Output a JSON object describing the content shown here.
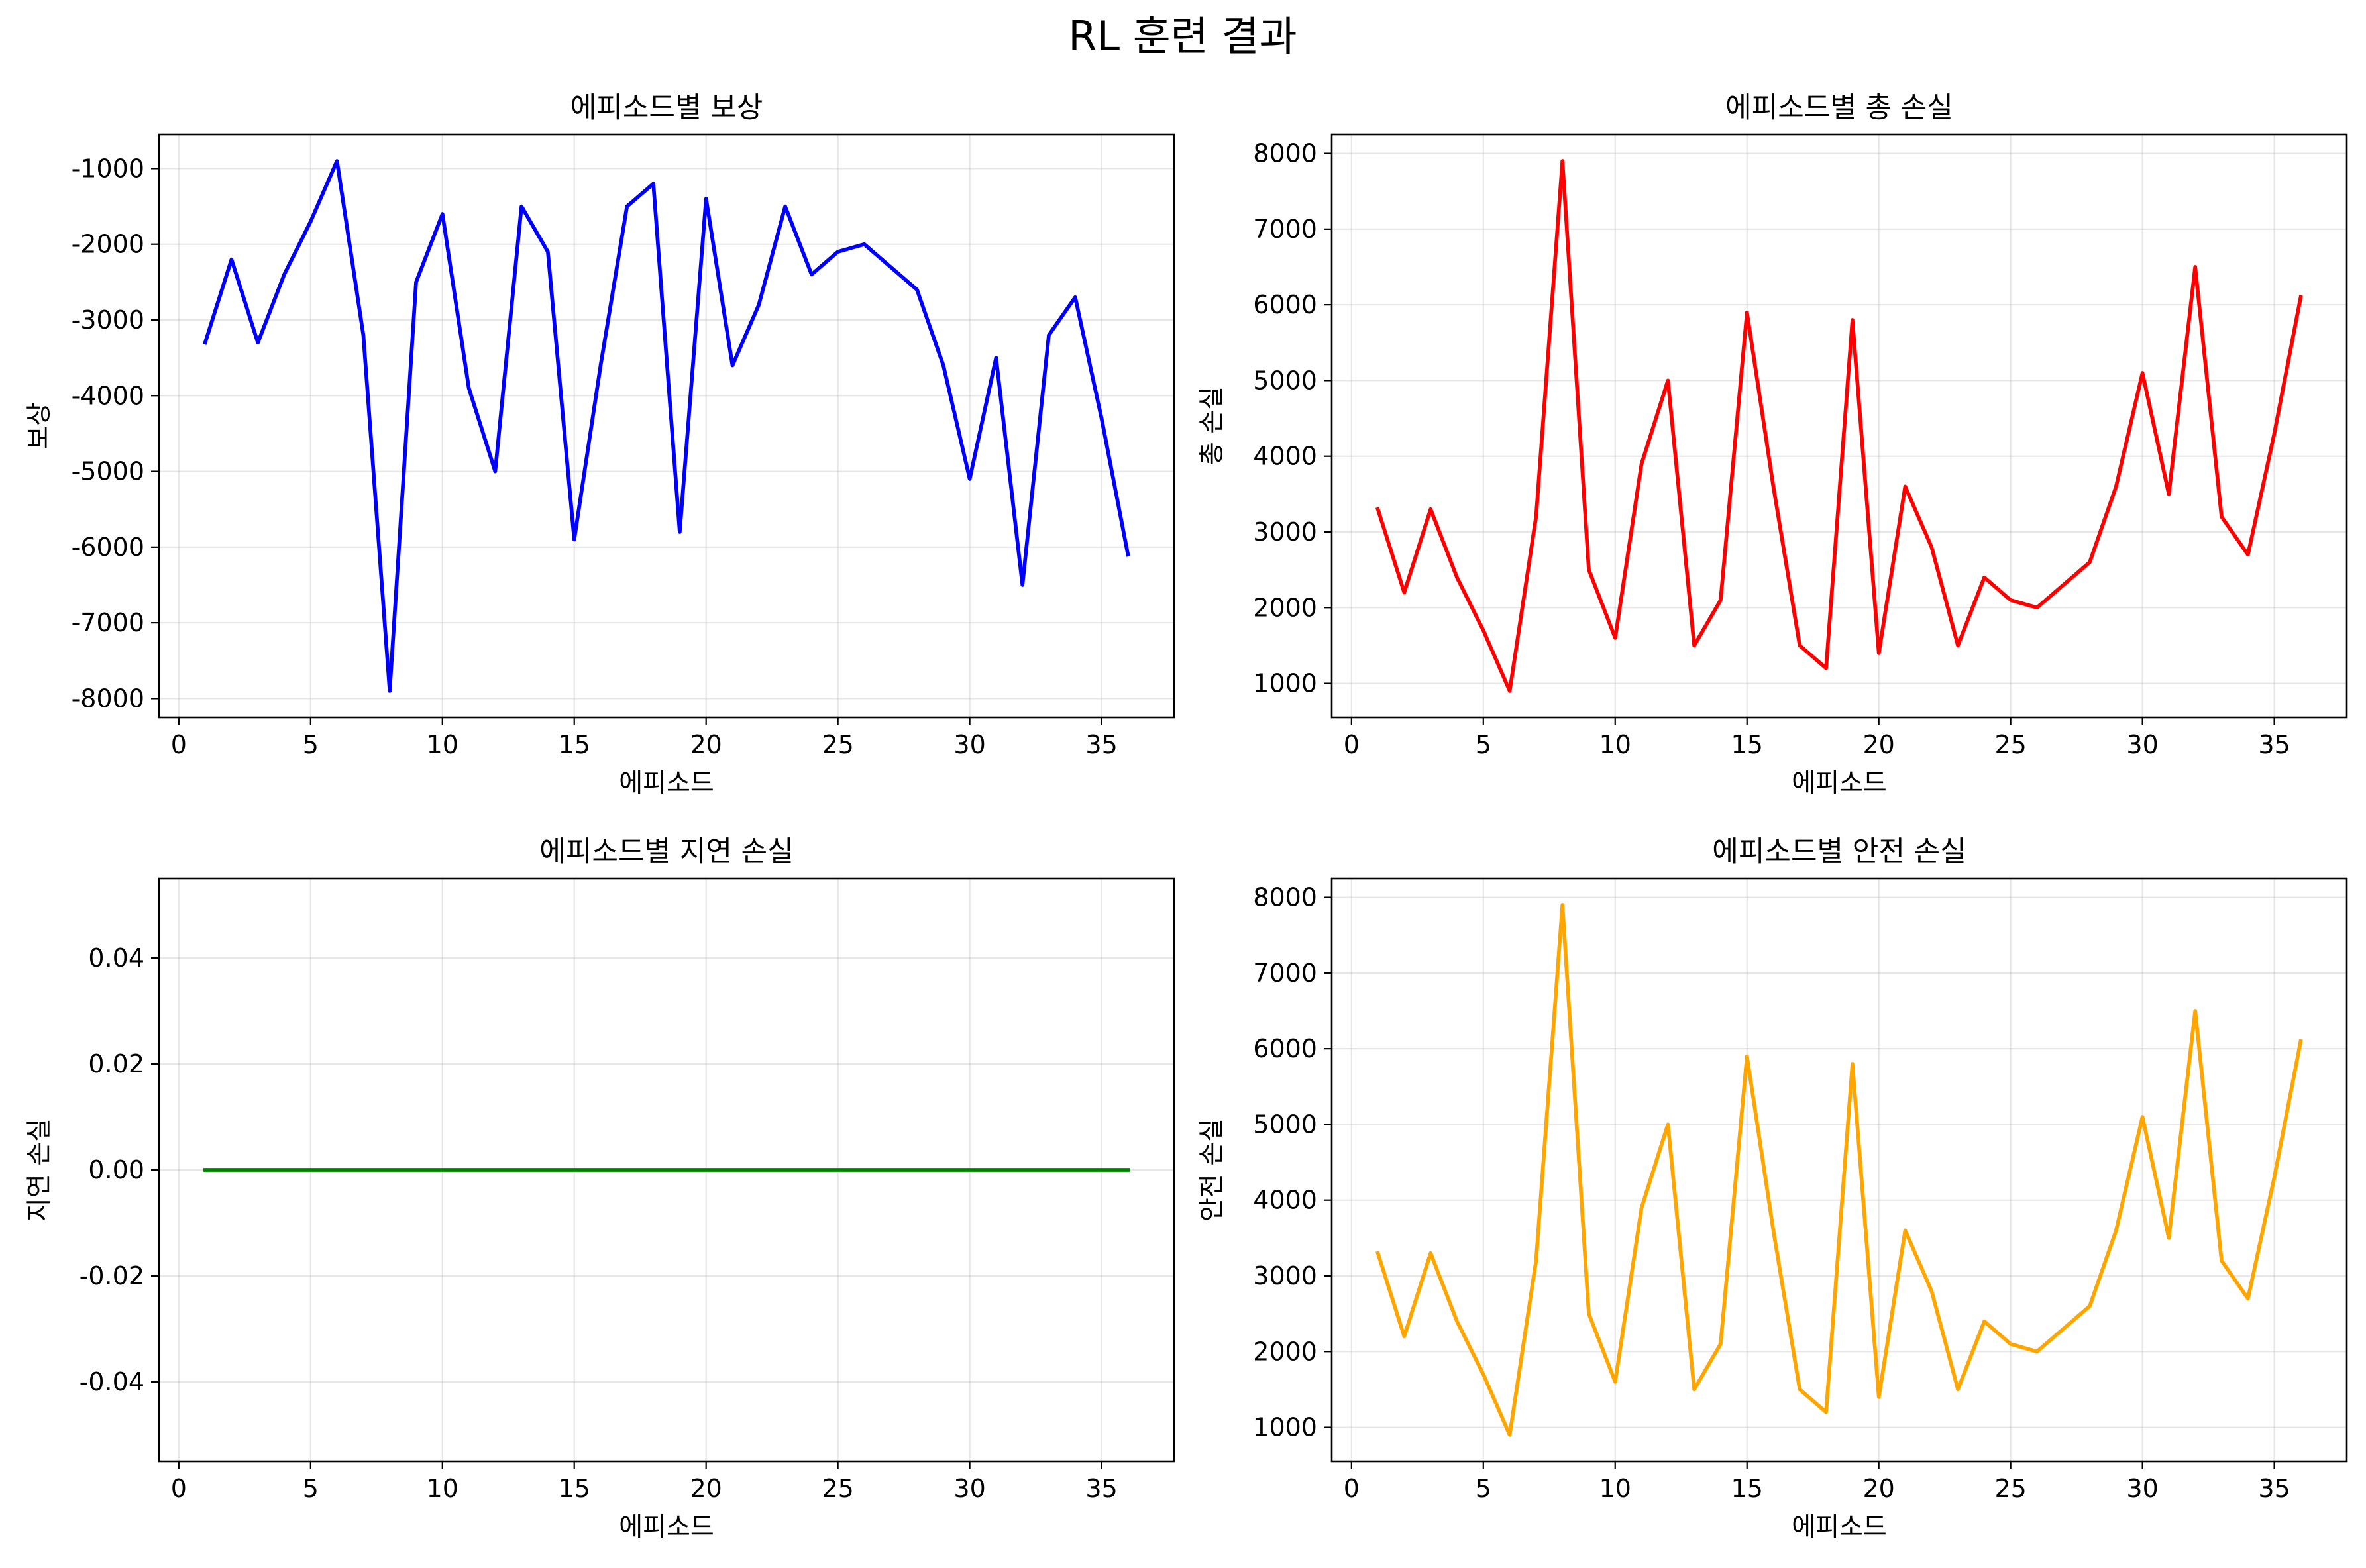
{
  "figure": {
    "suptitle": "RL 훈련 결과"
  },
  "chart_data": [
    {
      "type": "line",
      "title": "에피소드별 보상",
      "xlabel": "에피소드",
      "ylabel": "보상",
      "color": "#0000ff",
      "xlim": [
        -0.75,
        37.75
      ],
      "ylim": [
        -8250,
        -550
      ],
      "xticks": [
        0,
        5,
        10,
        15,
        20,
        25,
        30,
        35
      ],
      "xtick_labels": [
        "0",
        "5",
        "10",
        "15",
        "20",
        "25",
        "30",
        "35"
      ],
      "yticks": [
        -8000,
        -7000,
        -6000,
        -5000,
        -4000,
        -3000,
        -2000,
        -1000
      ],
      "ytick_labels": [
        "-8000",
        "-7000",
        "-6000",
        "-5000",
        "-4000",
        "-3000",
        "-2000",
        "-1000"
      ],
      "grid": true,
      "x": [
        1,
        2,
        3,
        4,
        5,
        6,
        7,
        8,
        9,
        10,
        11,
        12,
        13,
        14,
        15,
        16,
        17,
        18,
        19,
        20,
        21,
        22,
        23,
        24,
        25,
        26,
        27,
        28,
        29,
        30,
        31,
        32,
        33,
        34,
        35,
        36
      ],
      "values": [
        -3300,
        -2200,
        -3300,
        -2400,
        -1700,
        -900,
        -3200,
        -7900,
        -2500,
        -1600,
        -3900,
        -5000,
        -1500,
        -2100,
        -5900,
        -3600,
        -1500,
        -1200,
        -5800,
        -1400,
        -3600,
        -2800,
        -1500,
        -2400,
        -2100,
        -2000,
        -2300,
        -2600,
        -3600,
        -5100,
        -3500,
        -6500,
        -3200,
        -2700,
        -4300,
        -6100
      ]
    },
    {
      "type": "line",
      "title": "에피소드별 총 손실",
      "xlabel": "에피소드",
      "ylabel": "총 손실",
      "color": "#ff0000",
      "xlim": [
        -0.75,
        37.75
      ],
      "ylim": [
        550,
        8250
      ],
      "xticks": [
        0,
        5,
        10,
        15,
        20,
        25,
        30,
        35
      ],
      "xtick_labels": [
        "0",
        "5",
        "10",
        "15",
        "20",
        "25",
        "30",
        "35"
      ],
      "yticks": [
        1000,
        2000,
        3000,
        4000,
        5000,
        6000,
        7000,
        8000
      ],
      "ytick_labels": [
        "1000",
        "2000",
        "3000",
        "4000",
        "5000",
        "6000",
        "7000",
        "8000"
      ],
      "grid": true,
      "x": [
        1,
        2,
        3,
        4,
        5,
        6,
        7,
        8,
        9,
        10,
        11,
        12,
        13,
        14,
        15,
        16,
        17,
        18,
        19,
        20,
        21,
        22,
        23,
        24,
        25,
        26,
        27,
        28,
        29,
        30,
        31,
        32,
        33,
        34,
        35,
        36
      ],
      "values": [
        3300,
        2200,
        3300,
        2400,
        1700,
        900,
        3200,
        7900,
        2500,
        1600,
        3900,
        5000,
        1500,
        2100,
        5900,
        3600,
        1500,
        1200,
        5800,
        1400,
        3600,
        2800,
        1500,
        2400,
        2100,
        2000,
        2300,
        2600,
        3600,
        5100,
        3500,
        6500,
        3200,
        2700,
        4300,
        6100
      ]
    },
    {
      "type": "line",
      "title": "에피소드별 지연 손실",
      "xlabel": "에피소드",
      "ylabel": "지연 손실",
      "color": "#008000",
      "xlim": [
        -0.75,
        37.75
      ],
      "ylim": [
        -0.055,
        0.055
      ],
      "xticks": [
        0,
        5,
        10,
        15,
        20,
        25,
        30,
        35
      ],
      "xtick_labels": [
        "0",
        "5",
        "10",
        "15",
        "20",
        "25",
        "30",
        "35"
      ],
      "yticks": [
        -0.04,
        -0.02,
        0.0,
        0.02,
        0.04
      ],
      "ytick_labels": [
        "-0.04",
        "-0.02",
        "0.00",
        "0.02",
        "0.04"
      ],
      "grid": true,
      "x": [
        1,
        2,
        3,
        4,
        5,
        6,
        7,
        8,
        9,
        10,
        11,
        12,
        13,
        14,
        15,
        16,
        17,
        18,
        19,
        20,
        21,
        22,
        23,
        24,
        25,
        26,
        27,
        28,
        29,
        30,
        31,
        32,
        33,
        34,
        35,
        36
      ],
      "values": [
        0,
        0,
        0,
        0,
        0,
        0,
        0,
        0,
        0,
        0,
        0,
        0,
        0,
        0,
        0,
        0,
        0,
        0,
        0,
        0,
        0,
        0,
        0,
        0,
        0,
        0,
        0,
        0,
        0,
        0,
        0,
        0,
        0,
        0,
        0,
        0
      ]
    },
    {
      "type": "line",
      "title": "에피소드별 안전 손실",
      "xlabel": "에피소드",
      "ylabel": "안전 손실",
      "color": "#ffa500",
      "xlim": [
        -0.75,
        37.75
      ],
      "ylim": [
        550,
        8250
      ],
      "xticks": [
        0,
        5,
        10,
        15,
        20,
        25,
        30,
        35
      ],
      "xtick_labels": [
        "0",
        "5",
        "10",
        "15",
        "20",
        "25",
        "30",
        "35"
      ],
      "yticks": [
        1000,
        2000,
        3000,
        4000,
        5000,
        6000,
        7000,
        8000
      ],
      "ytick_labels": [
        "1000",
        "2000",
        "3000",
        "4000",
        "5000",
        "6000",
        "7000",
        "8000"
      ],
      "grid": true,
      "x": [
        1,
        2,
        3,
        4,
        5,
        6,
        7,
        8,
        9,
        10,
        11,
        12,
        13,
        14,
        15,
        16,
        17,
        18,
        19,
        20,
        21,
        22,
        23,
        24,
        25,
        26,
        27,
        28,
        29,
        30,
        31,
        32,
        33,
        34,
        35,
        36
      ],
      "values": [
        3300,
        2200,
        3300,
        2400,
        1700,
        900,
        3200,
        7900,
        2500,
        1600,
        3900,
        5000,
        1500,
        2100,
        5900,
        3600,
        1500,
        1200,
        5800,
        1400,
        3600,
        2800,
        1500,
        2400,
        2100,
        2000,
        2300,
        2600,
        3600,
        5100,
        3500,
        6500,
        3200,
        2700,
        4300,
        6100
      ]
    }
  ]
}
